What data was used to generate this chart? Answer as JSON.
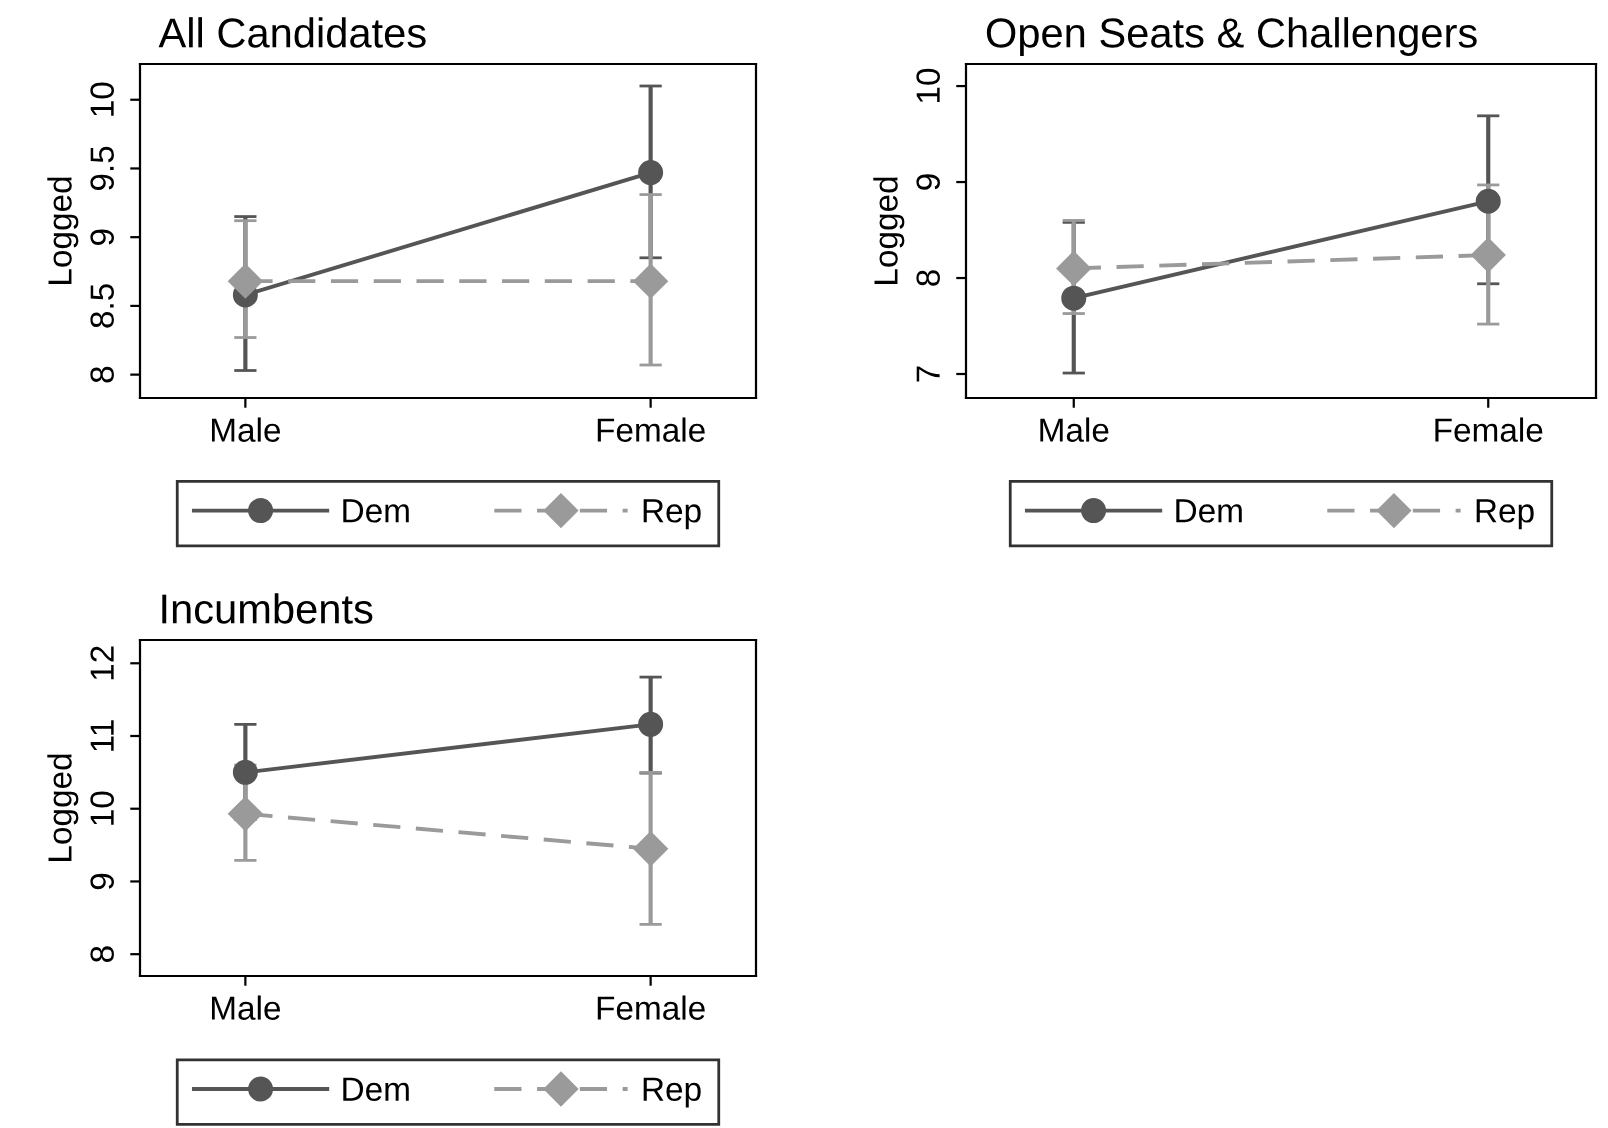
{
  "chart_data": [
    {
      "type": "line",
      "title": "All Candidates",
      "ylabel": "Logged",
      "categories": [
        "Male",
        "Female"
      ],
      "ylim": [
        7.83,
        10.26
      ],
      "yticks": [
        8,
        8.5,
        9,
        9.5,
        10
      ],
      "legend": "bottom",
      "grid": false,
      "series": [
        {
          "name": "Dem",
          "color": "#555555",
          "values": [
            8.58,
            9.47
          ],
          "errors": [
            [
              8.03,
              9.15
            ],
            [
              8.85,
              10.1
            ]
          ],
          "marker": "circle",
          "line_style": "solid"
        },
        {
          "name": "Rep",
          "color": "#9a9a9a",
          "values": [
            8.68,
            8.68
          ],
          "errors": [
            [
              8.27,
              9.12
            ],
            [
              8.07,
              9.31
            ]
          ],
          "marker": "diamond",
          "line_style": "dashed"
        }
      ]
    },
    {
      "type": "line",
      "title": "Open Seats & Challengers",
      "ylabel": "Logged",
      "categories": [
        "Male",
        "Female"
      ],
      "ylim": [
        6.75,
        10.23
      ],
      "yticks": [
        7,
        8,
        9,
        10
      ],
      "legend": "bottom",
      "grid": false,
      "series": [
        {
          "name": "Dem",
          "color": "#555555",
          "values": [
            7.79,
            8.8
          ],
          "errors": [
            [
              7.01,
              8.58
            ],
            [
              7.94,
              9.69
            ]
          ],
          "marker": "circle",
          "line_style": "solid"
        },
        {
          "name": "Rep",
          "color": "#9a9a9a",
          "values": [
            8.1,
            8.24
          ],
          "errors": [
            [
              7.63,
              8.6
            ],
            [
              7.52,
              8.97
            ]
          ],
          "marker": "diamond",
          "line_style": "dashed"
        }
      ]
    },
    {
      "type": "line",
      "title": "Incumbents",
      "ylabel": "Logged",
      "categories": [
        "Male",
        "Female"
      ],
      "ylim": [
        7.7,
        12.32
      ],
      "yticks": [
        8,
        9,
        10,
        11,
        12
      ],
      "legend": "bottom",
      "grid": false,
      "series": [
        {
          "name": "Dem",
          "color": "#555555",
          "values": [
            10.5,
            11.16
          ],
          "errors": [
            [
              9.85,
              11.16
            ],
            [
              10.49,
              11.81
            ]
          ],
          "marker": "circle",
          "line_style": "solid"
        },
        {
          "name": "Rep",
          "color": "#9a9a9a",
          "values": [
            9.93,
            9.45
          ],
          "errors": [
            [
              9.29,
              10.6
            ],
            [
              8.41,
              10.5
            ]
          ],
          "marker": "diamond",
          "line_style": "dashed"
        }
      ]
    }
  ]
}
